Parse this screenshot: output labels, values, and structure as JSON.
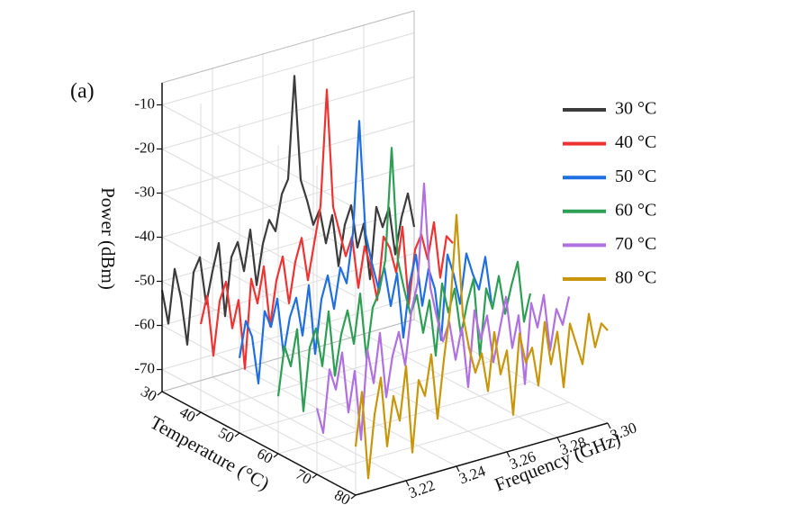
{
  "chart_data": {
    "type": "waterfall3d",
    "panel_label": "(a)",
    "xlabel": "Frequency (GHz)",
    "ylabel": "Temperature (°C)",
    "zlabel": "Power (dBm)",
    "xlim": [
      3.2,
      3.3
    ],
    "ylim": [
      30,
      80
    ],
    "zlim": [
      -75,
      -5
    ],
    "xticks": [
      3.22,
      3.24,
      3.26,
      3.28,
      {
        "value": 3.3,
        "label": "3.30"
      }
    ],
    "yticks": [
      30,
      40,
      50,
      60,
      70,
      80
    ],
    "zticks": [
      -70,
      -60,
      -50,
      -40,
      -30,
      -20,
      -10
    ],
    "grid": true,
    "legend": "upper right",
    "x": [
      3.2,
      3.2025,
      3.205,
      3.2075,
      3.21,
      3.2125,
      3.215,
      3.2175,
      3.22,
      3.2225,
      3.225,
      3.2275,
      3.23,
      3.2325,
      3.235,
      3.2375,
      3.24,
      3.2425,
      3.245,
      3.2475,
      3.25,
      3.2525,
      3.255,
      3.2575,
      3.26,
      3.2625,
      3.265,
      3.2675,
      3.27,
      3.2725,
      3.275,
      3.2775,
      3.28,
      3.2825,
      3.285,
      3.2875,
      3.29,
      3.2925,
      3.295,
      3.2975,
      3.3
    ],
    "series": [
      {
        "name": "30 °C",
        "temperature": 30,
        "color": "#3c3c3c",
        "values": [
          -52,
          -60,
          -48,
          -55,
          -66,
          -50,
          -47,
          -58,
          -51,
          -45,
          -62,
          -49,
          -46,
          -53,
          -44,
          -57,
          -48,
          -43,
          -46,
          -38,
          -35,
          -12,
          -36,
          -41,
          -47,
          -44,
          -52,
          -46,
          -58,
          -49,
          -45,
          -55,
          -50,
          -63,
          -47,
          -52,
          -48,
          -59,
          -51,
          -46,
          -54
        ]
      },
      {
        "name": "40 °C",
        "temperature": 40,
        "color": "#ee3333",
        "values": [
          -55,
          -49,
          -63,
          -51,
          -47,
          -58,
          -52,
          -68,
          -48,
          -54,
          -46,
          -60,
          -50,
          -45,
          -56,
          -47,
          -42,
          -52,
          -44,
          -36,
          -10,
          -37,
          -43,
          -49,
          -45,
          -57,
          -48,
          -53,
          -61,
          -47,
          -50,
          -56,
          -46,
          -64,
          -52,
          -49,
          -55,
          -47,
          -60,
          -51,
          -53
        ]
      },
      {
        "name": "50 °C",
        "temperature": 50,
        "color": "#1f6fe0",
        "values": [
          -58,
          -50,
          -54,
          -65,
          -49,
          -53,
          -47,
          -60,
          -52,
          -48,
          -57,
          -46,
          -62,
          -50,
          -45,
          -53,
          -44,
          -48,
          -37,
          -12,
          -38,
          -45,
          -51,
          -47,
          -56,
          -49,
          -64,
          -52,
          -46,
          -58,
          -50,
          -55,
          -67,
          -48,
          -53,
          -60,
          -49,
          -54,
          -58,
          -51,
          -62
        ]
      },
      {
        "name": "60 °C",
        "temperature": 60,
        "color": "#2e9e55",
        "values": [
          -62,
          -51,
          -56,
          -48,
          -67,
          -53,
          -49,
          -58,
          -46,
          -61,
          -52,
          -47,
          -55,
          -44,
          -59,
          -48,
          -45,
          -38,
          -13,
          -39,
          -46,
          -52,
          -48,
          -57,
          -50,
          -63,
          -47,
          -54,
          -49,
          -60,
          -53,
          -48,
          -66,
          -51,
          -56,
          -49,
          -58,
          -52,
          -47,
          -61,
          -55
        ]
      },
      {
        "name": "70 °C",
        "temperature": 70,
        "color": "#b070e0",
        "values": [
          -60,
          -66,
          -52,
          -57,
          -49,
          -63,
          -54,
          -70,
          -50,
          -58,
          -47,
          -62,
          -53,
          -48,
          -56,
          -44,
          -38,
          -16,
          -40,
          -47,
          -53,
          -49,
          -58,
          -51,
          -65,
          -48,
          -55,
          -50,
          -61,
          -54,
          -47,
          -59,
          -52,
          -68,
          -50,
          -56,
          -49,
          -62,
          -53,
          -57,
          -51
        ]
      },
      {
        "name": "80 °C",
        "temperature": 80,
        "color": "#c8960a",
        "values": [
          -64,
          -52,
          -72,
          -58,
          -50,
          -66,
          -55,
          -61,
          -49,
          -69,
          -53,
          -57,
          -48,
          -63,
          -50,
          -39,
          -18,
          -41,
          -49,
          -55,
          -51,
          -60,
          -47,
          -57,
          -52,
          -67,
          -49,
          -56,
          -53,
          -62,
          -48,
          -58,
          -51,
          -64,
          -50,
          -55,
          -60,
          -49,
          -57,
          -52,
          -54
        ]
      }
    ]
  }
}
